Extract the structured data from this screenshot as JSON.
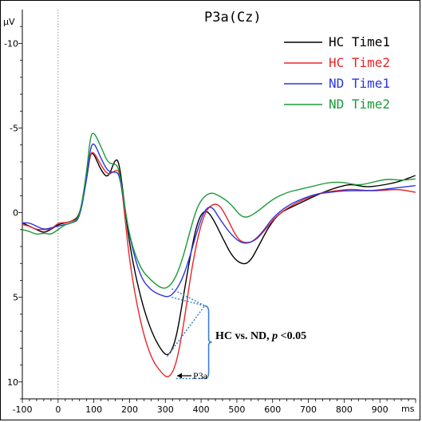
{
  "chart_data": {
    "type": "line",
    "title": "P3a(Cz)",
    "y_unit": "μV",
    "x_unit": "ms",
    "xlim": [
      -100,
      1000
    ],
    "ylim": [
      -12,
      11
    ],
    "y_inverted": true,
    "x_ticks": [
      -100,
      0,
      100,
      200,
      300,
      400,
      500,
      600,
      700,
      800,
      900
    ],
    "y_ticks": [
      -10,
      -5,
      0,
      5,
      10
    ],
    "onset_line_x": 0,
    "legend_position": "top-right",
    "series": [
      {
        "name": "HC Time1",
        "color": "#000000",
        "points": [
          [
            -100,
            0.6
          ],
          [
            -80,
            0.8
          ],
          [
            -60,
            1.0
          ],
          [
            -40,
            1.2
          ],
          [
            -20,
            1.0
          ],
          [
            0,
            0.7
          ],
          [
            20,
            0.6
          ],
          [
            40,
            0.5
          ],
          [
            60,
            0.2
          ],
          [
            80,
            -2.0
          ],
          [
            90,
            -3.5
          ],
          [
            100,
            -3.5
          ],
          [
            120,
            -2.5
          ],
          [
            140,
            -2.0
          ],
          [
            160,
            -3.2
          ],
          [
            170,
            -3.0
          ],
          [
            180,
            -1.5
          ],
          [
            200,
            2.0
          ],
          [
            230,
            5.0
          ],
          [
            260,
            7.0
          ],
          [
            290,
            8.2
          ],
          [
            310,
            8.5
          ],
          [
            330,
            7.5
          ],
          [
            350,
            5.0
          ],
          [
            370,
            2.5
          ],
          [
            390,
            0.5
          ],
          [
            410,
            -0.2
          ],
          [
            430,
            0.2
          ],
          [
            460,
            1.5
          ],
          [
            490,
            2.7
          ],
          [
            520,
            3.1
          ],
          [
            540,
            2.8
          ],
          [
            560,
            2.0
          ],
          [
            590,
            0.8
          ],
          [
            620,
            0.0
          ],
          [
            660,
            -0.4
          ],
          [
            700,
            -0.8
          ],
          [
            740,
            -1.2
          ],
          [
            780,
            -1.5
          ],
          [
            820,
            -1.7
          ],
          [
            860,
            -1.5
          ],
          [
            900,
            -1.6
          ],
          [
            950,
            -1.8
          ],
          [
            1000,
            -2.2
          ]
        ]
      },
      {
        "name": "HC Time2",
        "color": "#e8262a",
        "points": [
          [
            -100,
            0.7
          ],
          [
            -80,
            0.8
          ],
          [
            -60,
            1.0
          ],
          [
            -40,
            1.0
          ],
          [
            -20,
            1.0
          ],
          [
            0,
            0.6
          ],
          [
            20,
            0.6
          ],
          [
            40,
            0.5
          ],
          [
            60,
            0.3
          ],
          [
            80,
            -2.2
          ],
          [
            90,
            -3.5
          ],
          [
            100,
            -3.6
          ],
          [
            120,
            -2.8
          ],
          [
            140,
            -2.2
          ],
          [
            160,
            -2.5
          ],
          [
            170,
            -2.5
          ],
          [
            180,
            -1.2
          ],
          [
            200,
            3.0
          ],
          [
            230,
            6.5
          ],
          [
            260,
            8.6
          ],
          [
            290,
            9.5
          ],
          [
            310,
            9.8
          ],
          [
            330,
            9.0
          ],
          [
            350,
            6.8
          ],
          [
            370,
            3.8
          ],
          [
            390,
            1.5
          ],
          [
            410,
            0.0
          ],
          [
            430,
            -0.5
          ],
          [
            450,
            -0.5
          ],
          [
            470,
            0.2
          ],
          [
            500,
            1.5
          ],
          [
            520,
            1.8
          ],
          [
            550,
            1.7
          ],
          [
            580,
            1.0
          ],
          [
            610,
            0.2
          ],
          [
            650,
            -0.4
          ],
          [
            700,
            -0.9
          ],
          [
            740,
            -1.2
          ],
          [
            780,
            -1.3
          ],
          [
            820,
            -1.4
          ],
          [
            860,
            -1.3
          ],
          [
            900,
            -1.3
          ],
          [
            950,
            -1.4
          ],
          [
            1000,
            -1.2
          ]
        ]
      },
      {
        "name": "ND Time1",
        "color": "#2a35e0",
        "points": [
          [
            -100,
            0.6
          ],
          [
            -80,
            0.6
          ],
          [
            -60,
            0.8
          ],
          [
            -40,
            1.0
          ],
          [
            -20,
            0.9
          ],
          [
            0,
            0.8
          ],
          [
            20,
            0.7
          ],
          [
            40,
            0.6
          ],
          [
            60,
            0.4
          ],
          [
            80,
            -2.0
          ],
          [
            90,
            -3.8
          ],
          [
            100,
            -4.2
          ],
          [
            120,
            -3.2
          ],
          [
            140,
            -2.4
          ],
          [
            160,
            -2.4
          ],
          [
            170,
            -2.3
          ],
          [
            180,
            -1.2
          ],
          [
            200,
            1.5
          ],
          [
            230,
            3.8
          ],
          [
            260,
            4.6
          ],
          [
            290,
            4.9
          ],
          [
            310,
            5.0
          ],
          [
            330,
            4.6
          ],
          [
            350,
            3.8
          ],
          [
            370,
            2.5
          ],
          [
            390,
            1.0
          ],
          [
            410,
            -0.2
          ],
          [
            430,
            -0.4
          ],
          [
            450,
            0.3
          ],
          [
            480,
            1.2
          ],
          [
            510,
            1.8
          ],
          [
            540,
            1.8
          ],
          [
            570,
            1.2
          ],
          [
            600,
            0.3
          ],
          [
            640,
            -0.4
          ],
          [
            680,
            -0.8
          ],
          [
            720,
            -1.1
          ],
          [
            760,
            -1.2
          ],
          [
            800,
            -1.3
          ],
          [
            840,
            -1.3
          ],
          [
            880,
            -1.3
          ],
          [
            920,
            -1.4
          ],
          [
            960,
            -1.5
          ],
          [
            1000,
            -1.6
          ]
        ]
      },
      {
        "name": "ND Time2",
        "color": "#1a9a3a",
        "points": [
          [
            -100,
            1.0
          ],
          [
            -80,
            1.1
          ],
          [
            -60,
            1.3
          ],
          [
            -40,
            1.2
          ],
          [
            -20,
            1.3
          ],
          [
            0,
            1.0
          ],
          [
            20,
            0.7
          ],
          [
            40,
            0.6
          ],
          [
            60,
            0.3
          ],
          [
            80,
            -2.4
          ],
          [
            90,
            -4.5
          ],
          [
            100,
            -4.8
          ],
          [
            120,
            -3.9
          ],
          [
            140,
            -2.9
          ],
          [
            160,
            -2.9
          ],
          [
            170,
            -2.6
          ],
          [
            180,
            -1.3
          ],
          [
            200,
            1.5
          ],
          [
            230,
            3.3
          ],
          [
            260,
            4.0
          ],
          [
            290,
            4.5
          ],
          [
            310,
            4.4
          ],
          [
            330,
            3.8
          ],
          [
            350,
            2.6
          ],
          [
            370,
            1.0
          ],
          [
            390,
            -0.4
          ],
          [
            410,
            -1.0
          ],
          [
            430,
            -1.2
          ],
          [
            450,
            -1.0
          ],
          [
            480,
            -0.6
          ],
          [
            510,
            0.2
          ],
          [
            530,
            0.3
          ],
          [
            560,
            -0.1
          ],
          [
            600,
            -0.8
          ],
          [
            640,
            -1.2
          ],
          [
            680,
            -1.4
          ],
          [
            720,
            -1.6
          ],
          [
            760,
            -1.8
          ],
          [
            800,
            -1.8
          ],
          [
            840,
            -1.6
          ],
          [
            880,
            -1.8
          ],
          [
            920,
            -2.0
          ],
          [
            960,
            -1.9
          ],
          [
            1000,
            -2.0
          ]
        ]
      }
    ],
    "comparison_brackets": [
      {
        "from": [
          305,
          8.5
        ],
        "to": [
          410,
          5.5
        ]
      },
      {
        "from": [
          330,
          9.8
        ],
        "to": [
          410,
          9.8
        ]
      },
      {
        "from": [
          318,
          5.0
        ],
        "to": [
          410,
          5.5
        ]
      },
      {
        "from": [
          318,
          4.5
        ],
        "to": [
          410,
          5.5
        ]
      }
    ],
    "annotations": {
      "comparison": "HC vs. ND, ",
      "p_symbol": "p",
      "threshold": " <0.05",
      "peak_label": "P3a"
    }
  }
}
